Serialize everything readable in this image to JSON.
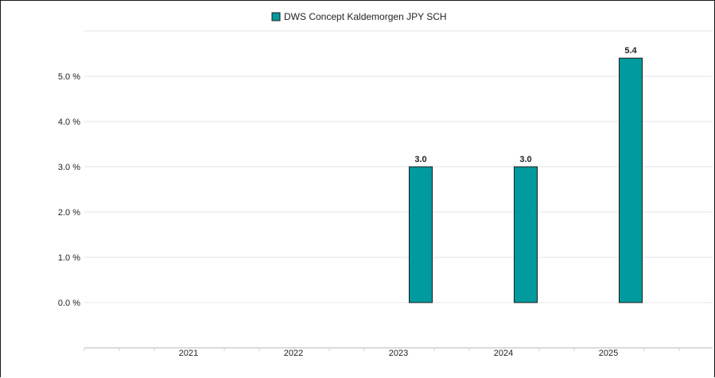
{
  "chart_data": {
    "type": "bar",
    "categories": [
      "2021",
      "2022",
      "2023",
      "2024",
      "2025"
    ],
    "series": [
      {
        "name": "DWS Concept Kaldemorgen JPY SCH",
        "values": [
          null,
          null,
          3.0,
          3.0,
          5.4
        ],
        "color": "#019a9e"
      }
    ],
    "data_labels": [
      "",
      "",
      "3.0",
      "3.0",
      "5.4"
    ],
    "y_ticks": [
      "0.0 %",
      "1.0 %",
      "2.0 %",
      "3.0 %",
      "4.0 %",
      "5.0 %"
    ],
    "ylim": [
      -1,
      6
    ],
    "grid": true,
    "legend_position": "top-center",
    "title": "",
    "xlabel": "",
    "ylabel": ""
  }
}
